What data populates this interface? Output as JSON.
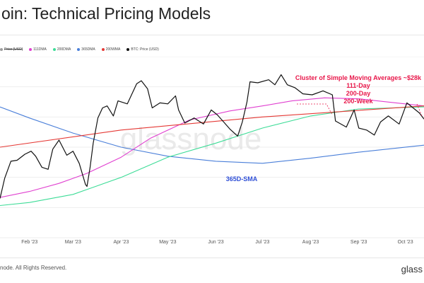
{
  "title": "oin: Technical Pricing Models",
  "legend": [
    {
      "label": "Price [USD]",
      "color": "#9e9e9e",
      "struck": true
    },
    {
      "label": "111DMA",
      "color": "#e040d0"
    },
    {
      "label": "200DMA",
      "color": "#3ddc97"
    },
    {
      "label": "365DMA",
      "color": "#4a7fd9"
    },
    {
      "label": "200WMA",
      "color": "#e53935"
    },
    {
      "label": "BTC: Price (USD)",
      "color": "#111111"
    }
  ],
  "footer": "node. All Rights Reserved.",
  "brand": "glass",
  "watermark": "glassnode",
  "chart_data": {
    "type": "line",
    "title": "oin: Technical Pricing Models",
    "x_ticks": [
      "Feb '23",
      "Mar '23",
      "Apr '23",
      "May '23",
      "Jun '23",
      "Jul '23",
      "Aug '23",
      "Sep '23",
      "Oct '23"
    ],
    "x_domain": [
      "2023-01-13",
      "2023-10-13"
    ],
    "y_domain": [
      15000,
      33000
    ],
    "y_scale": "linear",
    "grid": "horizontal",
    "legend_position": "top-left",
    "series": [
      {
        "name": "BTC: Price (USD)",
        "color": "#111111",
        "points": [
          [
            "2023-01-13",
            18900
          ],
          [
            "2023-01-16",
            20900
          ],
          [
            "2023-01-20",
            22600
          ],
          [
            "2023-01-24",
            22700
          ],
          [
            "2023-01-29",
            23300
          ],
          [
            "2023-02-02",
            23600
          ],
          [
            "2023-02-05",
            23100
          ],
          [
            "2023-02-09",
            22000
          ],
          [
            "2023-02-13",
            21800
          ],
          [
            "2023-02-16",
            23800
          ],
          [
            "2023-02-20",
            24700
          ],
          [
            "2023-02-25",
            23200
          ],
          [
            "2023-03-01",
            23600
          ],
          [
            "2023-03-05",
            22400
          ],
          [
            "2023-03-09",
            20300
          ],
          [
            "2023-03-10",
            20100
          ],
          [
            "2023-03-12",
            22000
          ],
          [
            "2023-03-14",
            24400
          ],
          [
            "2023-03-17",
            26900
          ],
          [
            "2023-03-20",
            27900
          ],
          [
            "2023-03-23",
            28100
          ],
          [
            "2023-03-27",
            27100
          ],
          [
            "2023-03-30",
            28600
          ],
          [
            "2023-04-05",
            28300
          ],
          [
            "2023-04-11",
            30300
          ],
          [
            "2023-04-14",
            30600
          ],
          [
            "2023-04-18",
            29800
          ],
          [
            "2023-04-21",
            27900
          ],
          [
            "2023-04-26",
            28400
          ],
          [
            "2023-05-01",
            28300
          ],
          [
            "2023-05-06",
            29100
          ],
          [
            "2023-05-08",
            27700
          ],
          [
            "2023-05-12",
            26400
          ],
          [
            "2023-05-18",
            26900
          ],
          [
            "2023-05-24",
            26300
          ],
          [
            "2023-05-29",
            27700
          ],
          [
            "2023-06-02",
            27200
          ],
          [
            "2023-06-06",
            26500
          ],
          [
            "2023-06-10",
            25800
          ],
          [
            "2023-06-15",
            25100
          ],
          [
            "2023-06-18",
            26500
          ],
          [
            "2023-06-21",
            28500
          ],
          [
            "2023-06-23",
            30500
          ],
          [
            "2023-06-28",
            30400
          ],
          [
            "2023-07-05",
            30700
          ],
          [
            "2023-07-09",
            30200
          ],
          [
            "2023-07-13",
            31200
          ],
          [
            "2023-07-17",
            30200
          ],
          [
            "2023-07-22",
            29900
          ],
          [
            "2023-07-27",
            29300
          ],
          [
            "2023-08-02",
            29200
          ],
          [
            "2023-08-09",
            29600
          ],
          [
            "2023-08-15",
            29200
          ],
          [
            "2023-08-17",
            26600
          ],
          [
            "2023-08-24",
            26000
          ],
          [
            "2023-08-29",
            27700
          ],
          [
            "2023-09-01",
            25900
          ],
          [
            "2023-09-06",
            25700
          ],
          [
            "2023-09-11",
            25200
          ],
          [
            "2023-09-15",
            26500
          ],
          [
            "2023-09-20",
            27100
          ],
          [
            "2023-09-27",
            26300
          ],
          [
            "2023-10-02",
            28400
          ],
          [
            "2023-10-06",
            27900
          ],
          [
            "2023-10-10",
            27400
          ],
          [
            "2023-10-13",
            26800
          ]
        ]
      },
      {
        "name": "111DMA",
        "color": "#e040d0",
        "points": [
          [
            "2023-01-13",
            19000
          ],
          [
            "2023-02-01",
            19600
          ],
          [
            "2023-02-20",
            20400
          ],
          [
            "2023-03-10",
            21400
          ],
          [
            "2023-04-01",
            23000
          ],
          [
            "2023-04-20",
            24900
          ],
          [
            "2023-05-15",
            26700
          ],
          [
            "2023-06-10",
            27600
          ],
          [
            "2023-07-01",
            28100
          ],
          [
            "2023-07-20",
            28600
          ],
          [
            "2023-08-10",
            28900
          ],
          [
            "2023-09-01",
            28800
          ],
          [
            "2023-09-25",
            28400
          ],
          [
            "2023-10-13",
            28100
          ]
        ]
      },
      {
        "name": "200DMA",
        "color": "#3ddc97",
        "points": [
          [
            "2023-01-13",
            18200
          ],
          [
            "2023-02-01",
            18500
          ],
          [
            "2023-03-01",
            19300
          ],
          [
            "2023-04-01",
            21000
          ],
          [
            "2023-05-01",
            23000
          ],
          [
            "2023-06-01",
            24400
          ],
          [
            "2023-07-01",
            25900
          ],
          [
            "2023-08-01",
            27100
          ],
          [
            "2023-09-01",
            27800
          ],
          [
            "2023-10-13",
            28000
          ]
        ]
      },
      {
        "name": "365DMA",
        "color": "#4a7fd9",
        "points": [
          [
            "2023-01-13",
            28000
          ],
          [
            "2023-02-01",
            26900
          ],
          [
            "2023-03-01",
            25400
          ],
          [
            "2023-04-01",
            24000
          ],
          [
            "2023-05-01",
            23100
          ],
          [
            "2023-06-01",
            22600
          ],
          [
            "2023-07-01",
            22400
          ],
          [
            "2023-08-01",
            22900
          ],
          [
            "2023-09-01",
            23500
          ],
          [
            "2023-10-13",
            24200
          ]
        ]
      },
      {
        "name": "200WMA",
        "color": "#e53935",
        "points": [
          [
            "2023-01-13",
            24000
          ],
          [
            "2023-04-01",
            25700
          ],
          [
            "2023-07-01",
            27000
          ],
          [
            "2023-10-13",
            28100
          ]
        ]
      }
    ],
    "annotations": [
      {
        "text": "Cluster of Simple Moving Averages ~$28k",
        "color": "#e8174a"
      },
      {
        "text": "111-Day",
        "color": "#e8174a"
      },
      {
        "text": "200-Day",
        "color": "#e8174a"
      },
      {
        "text": "200-Week",
        "color": "#e8174a"
      },
      {
        "text": "365D-SMA",
        "color": "#2f4fd6"
      }
    ]
  }
}
